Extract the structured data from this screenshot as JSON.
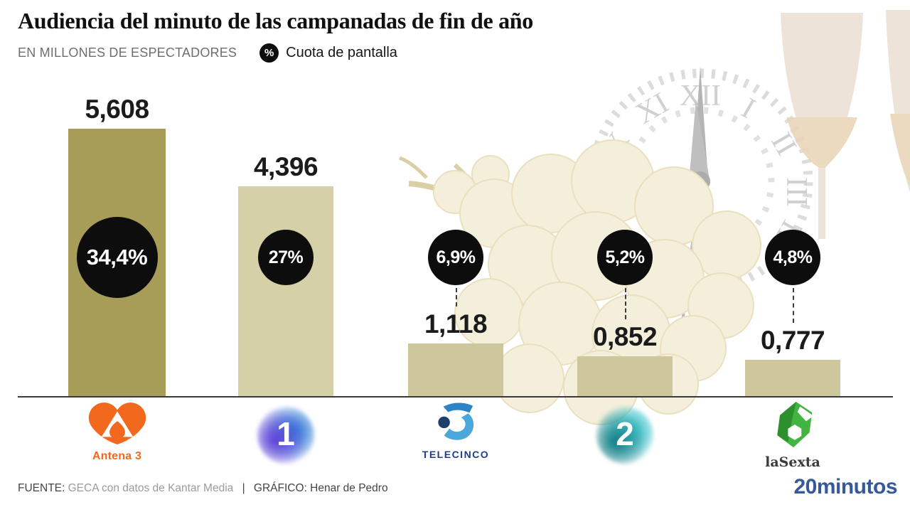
{
  "header": {
    "title": "Audiencia del minuto de las campanadas de fin de año",
    "units_label": "EN MILLONES DE ESPECTADORES",
    "badge_symbol": "%",
    "share_label": "Cuota de pantalla"
  },
  "chart_data": {
    "type": "bar",
    "title": "Audiencia del minuto de las campanadas de fin de año",
    "ylabel": "Espectadores (millones)",
    "categories": [
      "Antena 3",
      "La 1",
      "Telecinco",
      "La 2",
      "laSexta"
    ],
    "values": [
      5.608,
      4.396,
      1.118,
      0.852,
      0.777
    ],
    "value_labels": [
      "5,608",
      "4,396",
      "1,118",
      "0,852",
      "0,777"
    ],
    "share_percent": [
      34.4,
      27,
      6.9,
      5.2,
      4.8
    ],
    "share_labels": [
      "34,4%",
      "27%",
      "6,9%",
      "5,2%",
      "4,8%"
    ],
    "unit": "millones de espectadores",
    "share_unit": "cuota de pantalla (%)",
    "bar_colors": [
      "#a89d58",
      "#d6d0a8",
      "#cdc79b",
      "#cdc79b",
      "#cdc79b"
    ],
    "bubble_color": "#0d0d0d",
    "ylim": [
      0,
      6
    ],
    "grid": false,
    "legend": "none"
  },
  "channels": {
    "antena3": {
      "name": "Antena 3"
    },
    "la1": {
      "digit": "1"
    },
    "telecinco": {
      "name": "TELECINCO"
    },
    "la2": {
      "digit": "2"
    },
    "lasexta": {
      "name": "laSexta"
    }
  },
  "footer": {
    "source_label": "FUENTE:",
    "source_value": "GECA con datos de Kantar Media",
    "separator": "|",
    "credit": "GRÁFICO: Henar de Pedro",
    "brand": "20minutos"
  }
}
